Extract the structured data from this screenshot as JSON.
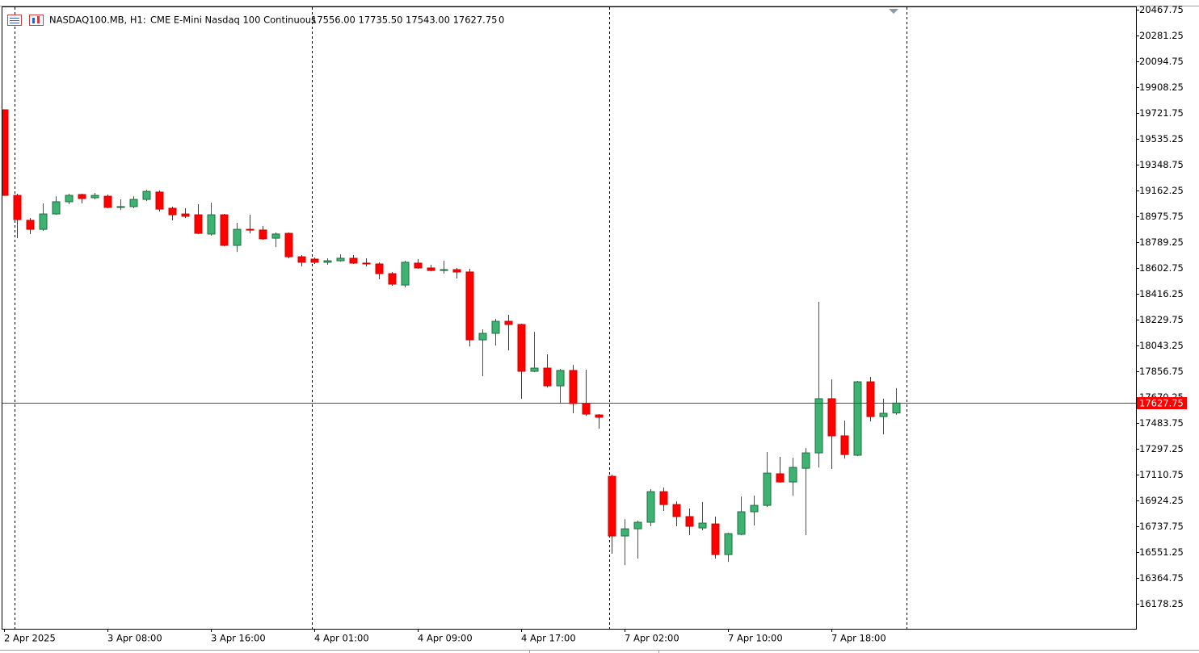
{
  "chart_data": {
    "type": "candlestick",
    "header": {
      "symbol": "NASDAQ100.MB, H1:",
      "description": "CME E-Mini Nasdaq 100 Continuous",
      "ohlc": "17556.00 17735.50 17543.00 17627.75",
      "volume": "0"
    },
    "categories": [
      "2 Apr 2025",
      null,
      null,
      null,
      null,
      null,
      null,
      null,
      "3 Apr 08:00",
      null,
      null,
      null,
      null,
      null,
      null,
      null,
      "3 Apr 16:00",
      null,
      null,
      null,
      null,
      null,
      null,
      null,
      "4 Apr 01:00",
      null,
      null,
      null,
      null,
      null,
      null,
      null,
      "4 Apr 09:00",
      null,
      null,
      null,
      null,
      null,
      null,
      null,
      "4 Apr 17:00",
      null,
      null,
      null,
      null,
      null,
      null,
      null,
      "7 Apr 02:00",
      null,
      null,
      null,
      null,
      null,
      null,
      null,
      "7 Apr 10:00",
      null,
      null,
      null,
      null,
      null,
      null,
      null,
      "7 Apr 18:00",
      null,
      null,
      null,
      null,
      null
    ],
    "open": [
      19745,
      19127,
      18947,
      18882,
      18993,
      19081,
      19133,
      19110,
      19121,
      19040,
      19046,
      19098,
      19151,
      19034,
      18993,
      18987,
      18848,
      18987,
      18766,
      18882,
      18877,
      18818,
      18853,
      18684,
      18667,
      18644,
      18655,
      18673,
      18638,
      18632,
      18562,
      18480,
      18638,
      18603,
      18585,
      18591,
      18574,
      18084,
      18131,
      18218,
      18195,
      17857,
      17880,
      17752,
      17863,
      17624,
      17542,
      17099,
      16668,
      16720,
      16767,
      16988,
      16895,
      16808,
      16726,
      16755,
      16534,
      16680,
      16843,
      16889,
      17117,
      17058,
      17157,
      17268,
      17659,
      17391,
      17251,
      17781,
      17530,
      17556
    ],
    "high": [
      19745,
      19139,
      18964,
      19069,
      19121,
      19139,
      19139,
      19145,
      19133,
      19098,
      19121,
      19168,
      19162,
      19046,
      19034,
      19063,
      19075,
      18993,
      18929,
      18987,
      18906,
      18859,
      18859,
      18696,
      18679,
      18673,
      18702,
      18696,
      18673,
      18644,
      18574,
      18655,
      18667,
      18626,
      18655,
      18603,
      18597,
      18160,
      18236,
      18265,
      18201,
      18142,
      17979,
      17874,
      17903,
      17868,
      17548,
      17111,
      16790,
      16779,
      17006,
      17018,
      16918,
      16866,
      16913,
      16808,
      16691,
      16953,
      16959,
      17274,
      17239,
      17233,
      17303,
      18358,
      17798,
      17501,
      17787,
      17816,
      17659,
      17735.5
    ],
    "low": [
      19127,
      18818,
      18848,
      18871,
      18987,
      19063,
      19069,
      19098,
      19034,
      19022,
      19034,
      19086,
      19011,
      18947,
      18964,
      18848,
      18836,
      18760,
      18719,
      18853,
      18807,
      18754,
      18673,
      18614,
      18632,
      18626,
      18649,
      18632,
      18614,
      18521,
      18475,
      18463,
      18597,
      18579,
      18562,
      18527,
      18037,
      17822,
      18043,
      18008,
      17659,
      17851,
      17740,
      17624,
      17554,
      17536,
      17443,
      16540,
      16458,
      16505,
      16738,
      16849,
      16738,
      16674,
      16709,
      16505,
      16481,
      16674,
      16744,
      16878,
      17053,
      16959,
      16674,
      17163,
      17152,
      17227,
      17245,
      17495,
      17402,
      17543
    ],
    "close": [
      19127,
      18952,
      18882,
      18993,
      19081,
      19127,
      19104,
      19127,
      19040,
      19046,
      19098,
      19156,
      19028,
      18987,
      18976,
      18853,
      18987,
      18766,
      18882,
      18877,
      18813,
      18848,
      18684,
      18644,
      18644,
      18655,
      18673,
      18638,
      18632,
      18562,
      18486,
      18644,
      18603,
      18585,
      18591,
      18574,
      18084,
      18131,
      18218,
      18195,
      17857,
      17880,
      17752,
      17863,
      17624,
      17548,
      17525,
      16668,
      16720,
      16767,
      16988,
      16895,
      16808,
      16738,
      16761,
      16534,
      16685,
      16843,
      16889,
      17122,
      17058,
      17163,
      17268,
      17659,
      17391,
      17256,
      17781,
      17530,
      17554,
      17627.75
    ],
    "up_color": "#3cb371",
    "down_color": "#ff0000",
    "last_price": 17627.75,
    "last_price_color": "#ff0000",
    "ylim": [
      15998,
      20491
    ],
    "yticks": [
      20467.75,
      20281.25,
      20094.75,
      19908.25,
      19721.75,
      19535.25,
      19348.75,
      19162.25,
      18975.75,
      18789.25,
      18602.75,
      18416.25,
      18229.75,
      18043.25,
      17856.75,
      17670.25,
      17483.75,
      17297.25,
      17110.75,
      16924.25,
      16737.75,
      16551.25,
      16364.75,
      16178.25
    ]
  }
}
